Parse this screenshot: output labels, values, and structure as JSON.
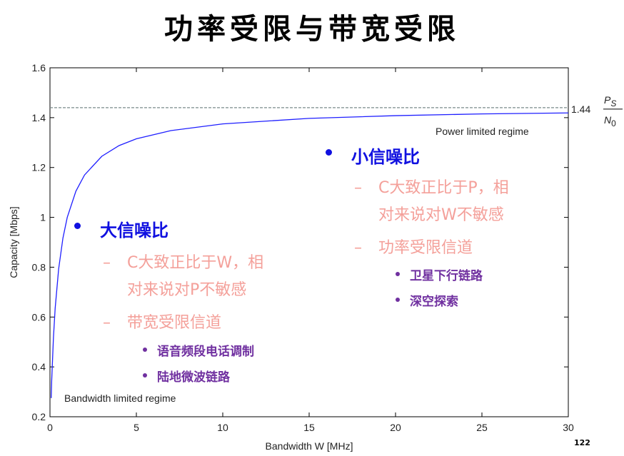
{
  "title": "功率受限与带宽受限",
  "page_number": "122",
  "chart_data": {
    "type": "line",
    "xlabel": "Bandwidth W [MHz]",
    "ylabel": "Capacity [Mbps]",
    "xlim": [
      0,
      30
    ],
    "xticks": [
      0,
      5,
      10,
      15,
      20,
      25,
      30
    ],
    "ylim": [
      0.2,
      1.6
    ],
    "yticks": [
      0.2,
      0.4,
      0.6,
      0.8,
      1,
      1.2,
      1.4,
      1.6
    ],
    "grid": false,
    "series": [
      {
        "color": "#1f1fff",
        "x": [
          0.07,
          0.1,
          0.2,
          0.3,
          0.5,
          0.75,
          1,
          1.5,
          2,
          3,
          4,
          5,
          7,
          10,
          15,
          20,
          25,
          30
        ],
        "values": [
          0.275,
          0.346,
          0.517,
          0.635,
          0.792,
          0.917,
          1,
          1.105,
          1.17,
          1.245,
          1.288,
          1.315,
          1.348,
          1.375,
          1.397,
          1.408,
          1.415,
          1.419
        ]
      }
    ],
    "asymptote": {
      "value": 1.44,
      "color": "#7a8a8a",
      "numerator": "P",
      "numerator_sub": "S",
      "denominator": "N",
      "denominator_sub": "0"
    },
    "annotations": [
      "Power limited regime",
      "Bandwidth limited regime"
    ]
  },
  "left_block": {
    "heading": "大信噪比",
    "items": [
      {
        "lines": [
          "C大致正比于W，相",
          "对来说对P不敏感"
        ]
      },
      {
        "lines": [
          "带宽受限信道"
        ]
      }
    ],
    "subitems": [
      "语音频段电话调制",
      "陆地微波链路"
    ]
  },
  "right_block": {
    "heading": "小信噪比",
    "items": [
      {
        "lines": [
          "C大致正比于P，相",
          "对来说对W不敏感"
        ]
      },
      {
        "lines": [
          "功率受限信道"
        ]
      }
    ],
    "subitems": [
      "卫星下行链路",
      "深空探索"
    ]
  }
}
